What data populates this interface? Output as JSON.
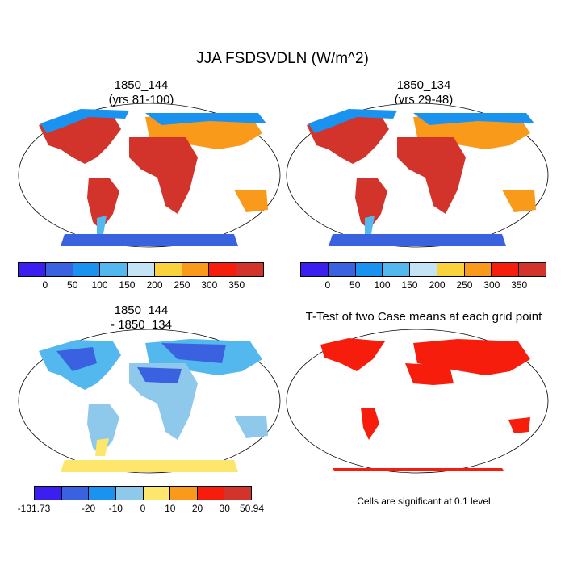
{
  "title": "JJA FSDSVDLN (W/m^2)",
  "panels": [
    {
      "line1": "1850_144",
      "line2": "(yrs 81-100)"
    },
    {
      "line1": "1850_134",
      "line2": "(yrs 29-48)"
    },
    {
      "line1": "1850_144",
      "line2": "- 1850_134"
    },
    {
      "line1": "T-Test of two Case means at each grid point",
      "line2": ""
    }
  ],
  "colorbar_abs": {
    "colors": [
      "#3b1ef0",
      "#3a62e0",
      "#1a92f0",
      "#52b8ee",
      "#c4e4f6",
      "#fad23c",
      "#f99a1a",
      "#f61d0c",
      "#d2332a"
    ],
    "labels": [
      "0",
      "50",
      "100",
      "150",
      "200",
      "250",
      "300",
      "350"
    ]
  },
  "colorbar_diff": {
    "colors": [
      "#3b1ef0",
      "#3a62e0",
      "#1a92f0",
      "#8ec8ea",
      "#fce76c",
      "#f99a1a",
      "#f61d0c",
      "#d2332a"
    ],
    "labels": [
      "-131.73",
      "-20",
      "-10",
      "0",
      "10",
      "20",
      "30",
      "50.94"
    ]
  },
  "note": "Cells are significant at 0.1 level"
}
